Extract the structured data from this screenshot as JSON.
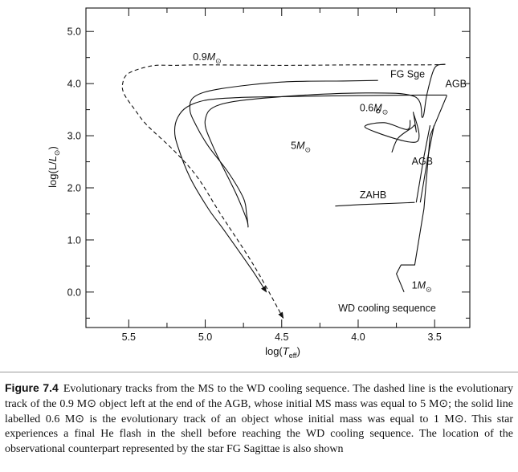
{
  "chart_data": {
    "type": "line",
    "xlabel": "log(T_eff)",
    "ylabel": "log(L/L_⊙)",
    "xlim": [
      5.78,
      3.27
    ],
    "ylim": [
      -0.68,
      5.45
    ],
    "x_reversed": true,
    "x_ticks": [
      5.5,
      5.0,
      4.5,
      4.0,
      3.5
    ],
    "x_tick_labels": [
      "5.5",
      "5.0",
      "4.5",
      "4.0",
      "3.5"
    ],
    "y_ticks": [
      5.0,
      4.0,
      3.0,
      2.0,
      1.0,
      0.0
    ],
    "y_tick_labels": [
      "5.0",
      "4.0",
      "3.0",
      "2.0",
      "1.0",
      "0.0"
    ],
    "grid": false,
    "series": [
      {
        "name": "0.9M_⊙",
        "style": "dashed",
        "arrow_end": true,
        "x": [
          3.43,
          3.55,
          4.0,
          4.5,
          5.0,
          5.2,
          5.35,
          5.5,
          5.54,
          5.53,
          5.46,
          5.38,
          5.2,
          5.05,
          4.9,
          4.68,
          4.49
        ],
        "y": [
          4.37,
          4.36,
          4.36,
          4.35,
          4.36,
          4.35,
          4.34,
          4.2,
          4.0,
          3.8,
          3.5,
          3.2,
          2.7,
          2.2,
          1.5,
          0.5,
          -0.5
        ]
      },
      {
        "name": "0.6M_⊙",
        "style": "solid",
        "arrow_end": true,
        "x": [
          3.42,
          3.6,
          4.0,
          4.5,
          4.8,
          5.0,
          5.12,
          5.18,
          5.2,
          5.18,
          5.1,
          4.98,
          4.88,
          4.7,
          4.6
        ],
        "y": [
          3.78,
          3.78,
          3.77,
          3.75,
          3.73,
          3.68,
          3.55,
          3.35,
          3.1,
          2.8,
          2.2,
          1.6,
          1.2,
          0.45,
          0.0
        ]
      },
      {
        "name": "FG Sge loop",
        "style": "solid",
        "x": [
          3.87,
          4.1,
          4.5,
          4.9,
          5.07,
          5.1,
          5.06,
          4.98,
          4.85,
          4.75,
          4.73,
          4.72,
          4.73,
          4.8,
          4.95,
          5.0,
          4.9,
          4.5,
          3.95,
          3.63,
          3.58,
          3.55,
          3.5,
          3.43
        ],
        "y": [
          4.06,
          4.05,
          4.03,
          3.9,
          3.75,
          3.5,
          3.2,
          2.8,
          2.3,
          1.8,
          1.5,
          1.25,
          1.4,
          1.9,
          2.8,
          3.3,
          3.6,
          3.75,
          3.82,
          3.75,
          3.35,
          3.8,
          4.3,
          4.37
        ]
      },
      {
        "name": "5M_⊙",
        "style": "solid",
        "x": [
          3.78,
          3.74,
          3.65,
          3.63,
          3.62,
          3.64,
          3.62,
          3.95,
          3.83,
          3.68,
          3.66
        ],
        "y": [
          2.68,
          2.95,
          3.15,
          3.2,
          3.08,
          3.45,
          2.88,
          3.15,
          3.25,
          3.12,
          3.3
        ]
      },
      {
        "name": "ZAHB",
        "style": "solid",
        "x": [
          4.15,
          3.98,
          3.8,
          3.63
        ],
        "y": [
          1.65,
          1.68,
          1.7,
          1.72
        ]
      },
      {
        "name": "AGB",
        "style": "solid",
        "x": [
          3.62,
          3.57,
          3.53
        ],
        "y": [
          1.72,
          2.6,
          3.2
        ]
      },
      {
        "name": "1M_⊙",
        "style": "solid",
        "x": [
          3.7,
          3.75,
          3.72,
          3.63,
          3.57,
          3.53,
          3.42
        ],
        "y": [
          0.0,
          0.35,
          0.52,
          0.52,
          1.6,
          3.0,
          3.77
        ]
      }
    ],
    "annotations": [
      {
        "text": "0.9M_⊙",
        "x": 5.08,
        "y": 4.45
      },
      {
        "text": "FG Sge",
        "x": 3.79,
        "y": 4.12
      },
      {
        "text": "AGB",
        "x": 3.43,
        "y": 3.93
      },
      {
        "text": "0.6M_⊙",
        "x": 3.99,
        "y": 3.47
      },
      {
        "text": "5M_⊙",
        "x": 4.44,
        "y": 2.75
      },
      {
        "text": "AGB",
        "x": 3.65,
        "y": 2.45
      },
      {
        "text": "ZAHB",
        "x": 3.99,
        "y": 1.8
      },
      {
        "text": "1M_⊙",
        "x": 3.65,
        "y": 0.07
      },
      {
        "text": "WD cooling sequence",
        "x": 4.13,
        "y": -0.37
      }
    ]
  },
  "caption": {
    "label": "Figure 7.4",
    "text": "Evolutionary tracks from the MS to the WD cooling sequence. The dashed line is the evolutionary track of the 0.9 M⊙ object left at the end of the AGB, whose initial MS mass was equal to 5 M⊙; the solid line labelled 0.6 M⊙ is the evolutionary track of an object whose initial mass was equal to 1 M⊙. This star experiences a final He flash in the shell before reaching the WD cooling sequence. The location of the observational counterpart represented by the star FG Sagittae is also shown"
  }
}
